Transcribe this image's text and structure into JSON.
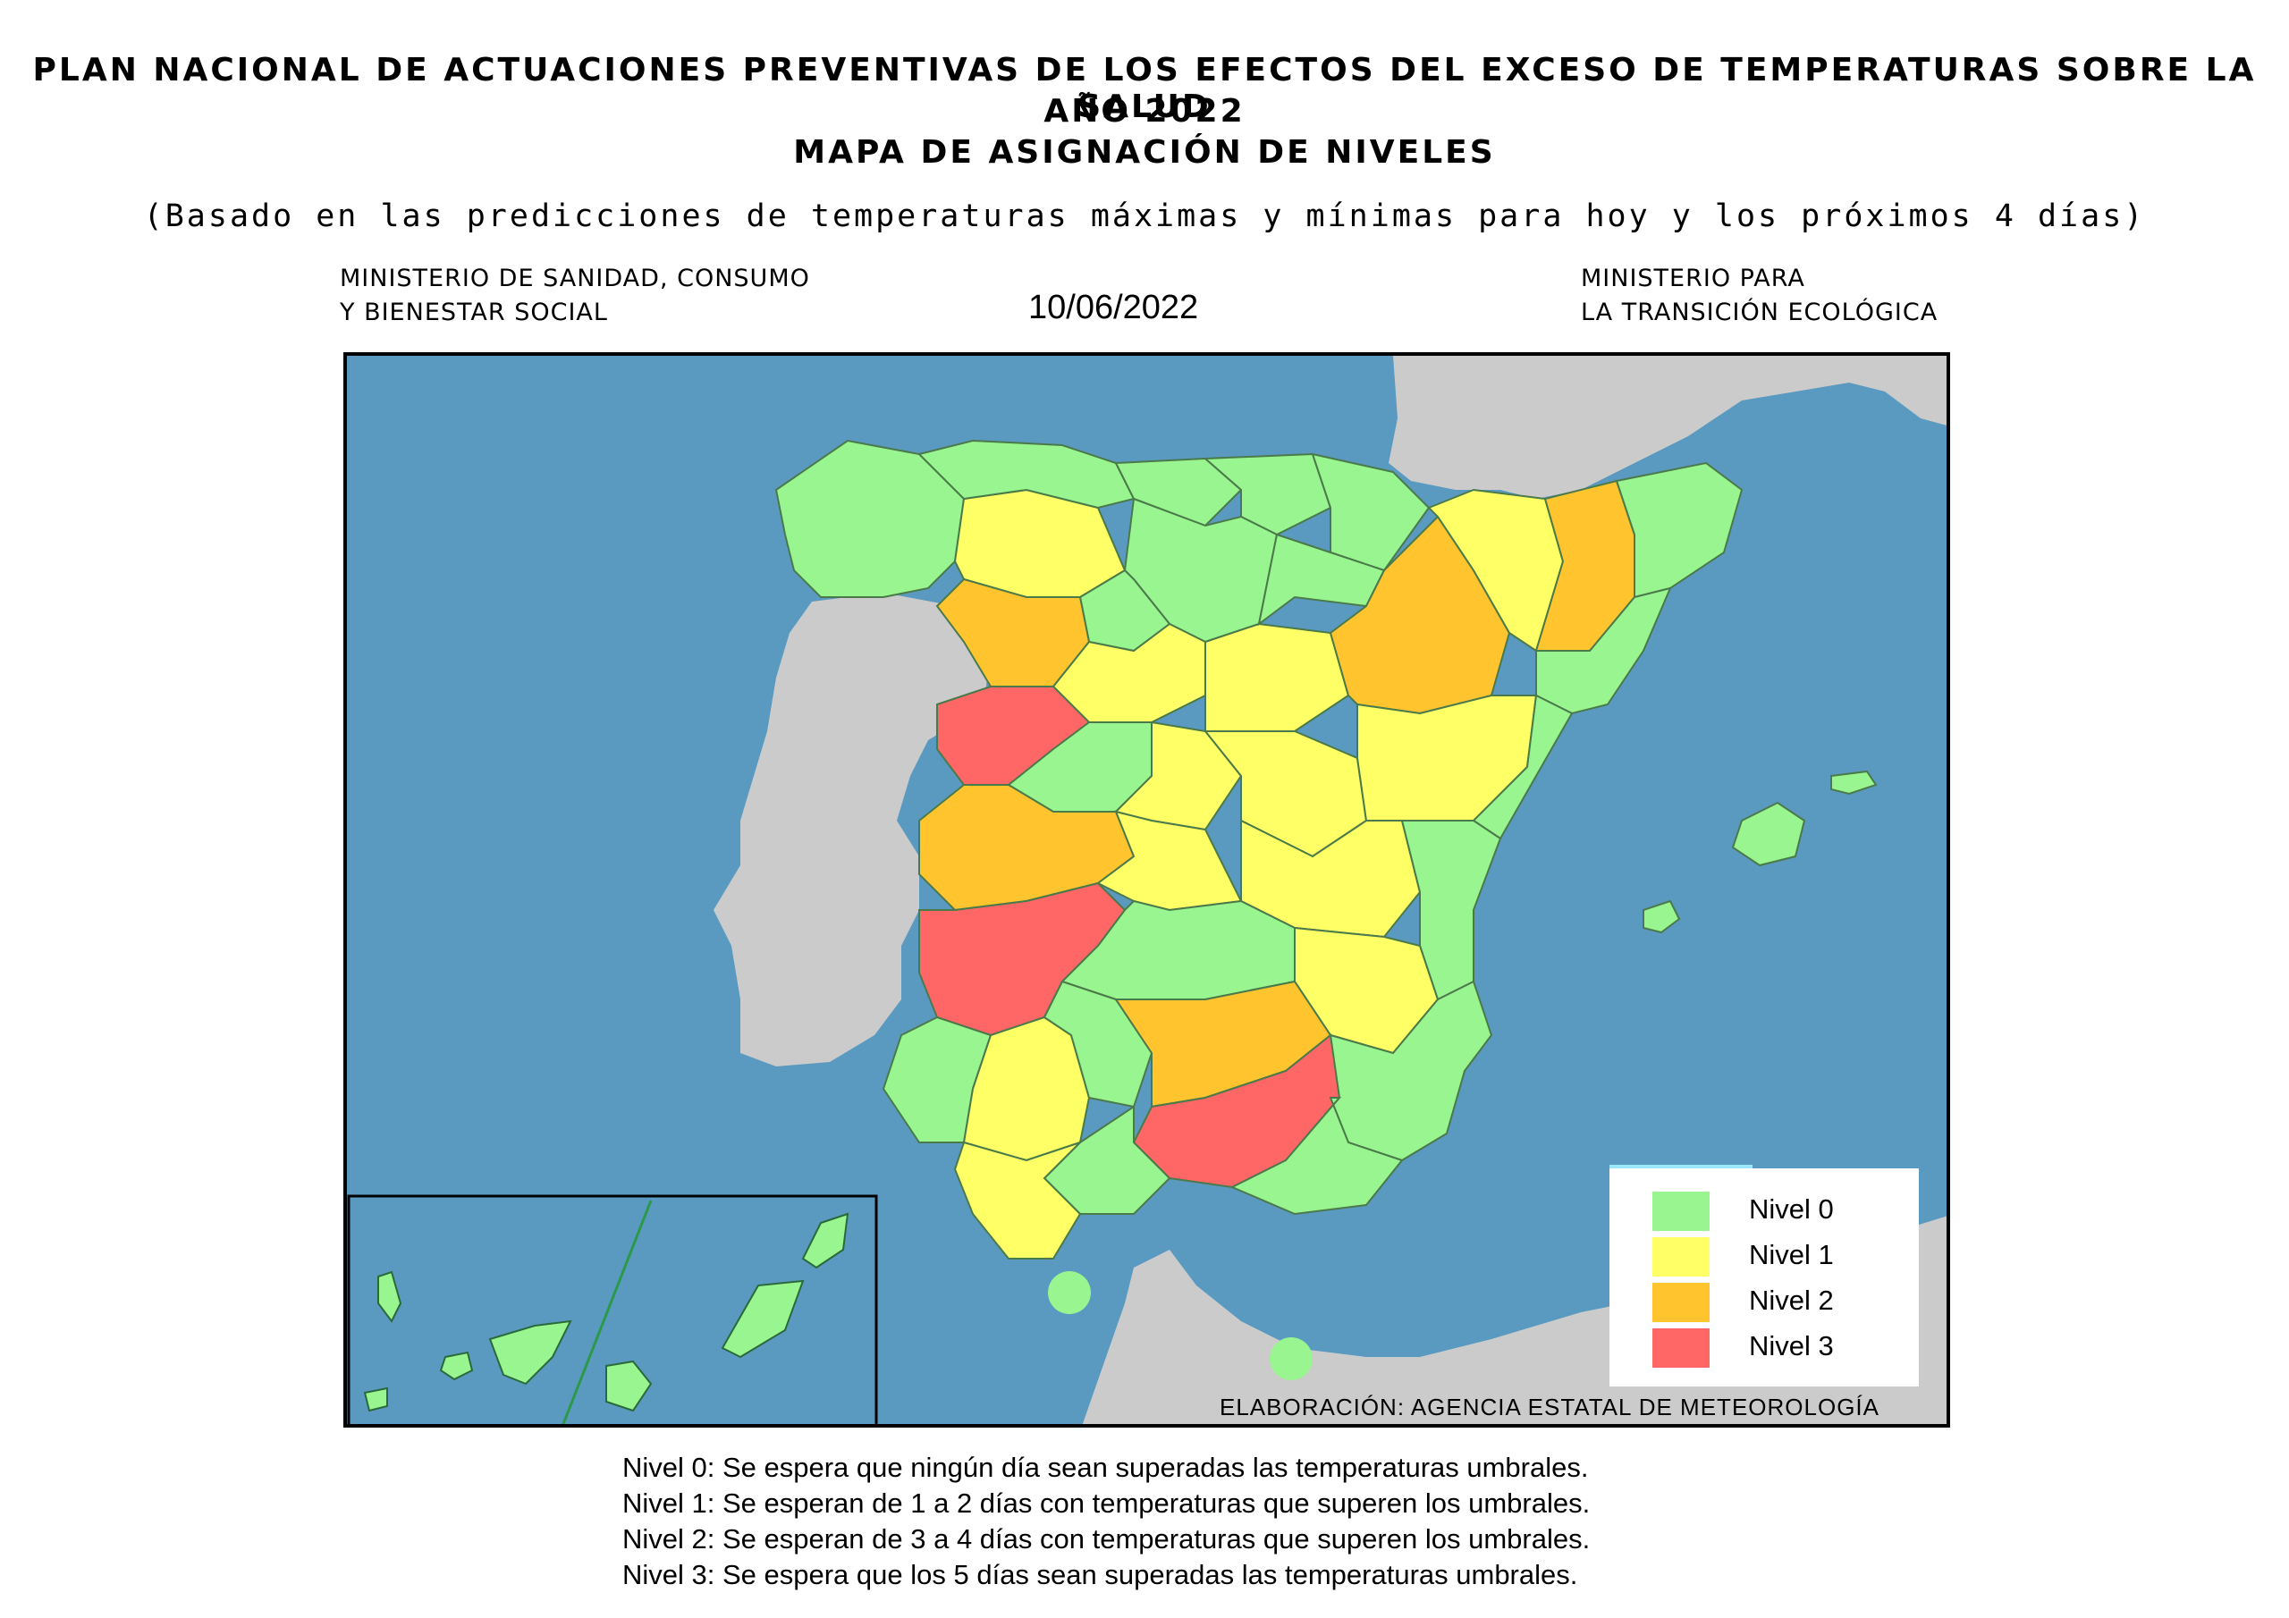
{
  "header": {
    "line1": "PLAN NACIONAL DE ACTUACIONES PREVENTIVAS DE LOS EFECTOS DEL EXCESO DE TEMPERATURAS SOBRE LA SALUD",
    "line2": "AÑO 2022",
    "line3": "MAPA DE ASIGNACIÓN DE NIVELES",
    "subtitle": "(Basado en las predicciones de temperaturas máximas y mínimas para hoy y los próximos 4 días)"
  },
  "ministries": {
    "left_line1": "MINISTERIO DE SANIDAD, CONSUMO",
    "left_line2": "Y BIENESTAR SOCIAL",
    "right_line1": "MINISTERIO PARA",
    "right_line2": "LA TRANSICIÓN ECOLÓGICA"
  },
  "date": "10/06/2022",
  "colors": {
    "sea": "#5a9ac0",
    "foreign_land": "#cbcbcb",
    "nivel0": "#99f58f",
    "nivel1": "#ffff66",
    "nivel2": "#ffc42e",
    "nivel3": "#ff6666"
  },
  "legend": [
    {
      "label": "Nivel 0",
      "color": "#99f58f"
    },
    {
      "label": "Nivel 1",
      "color": "#ffff66"
    },
    {
      "label": "Nivel 2",
      "color": "#ffc42e"
    },
    {
      "label": "Nivel 3",
      "color": "#ff6666"
    }
  ],
  "credit": "ELABORACIÓN: AGENCIA ESTATAL DE METEOROLOGÍA",
  "notes": [
    "Nivel 0: Se espera que ningún día sean superadas las temperaturas umbrales.",
    "Nivel 1:  Se esperan de 1 a 2 días con temperaturas que superen los umbrales.",
    "Nivel 2: Se esperan de 3 a 4 días con temperaturas que superen los umbrales.",
    "Nivel 3: Se espera que los 5 días sean superadas las temperaturas umbrales."
  ]
}
